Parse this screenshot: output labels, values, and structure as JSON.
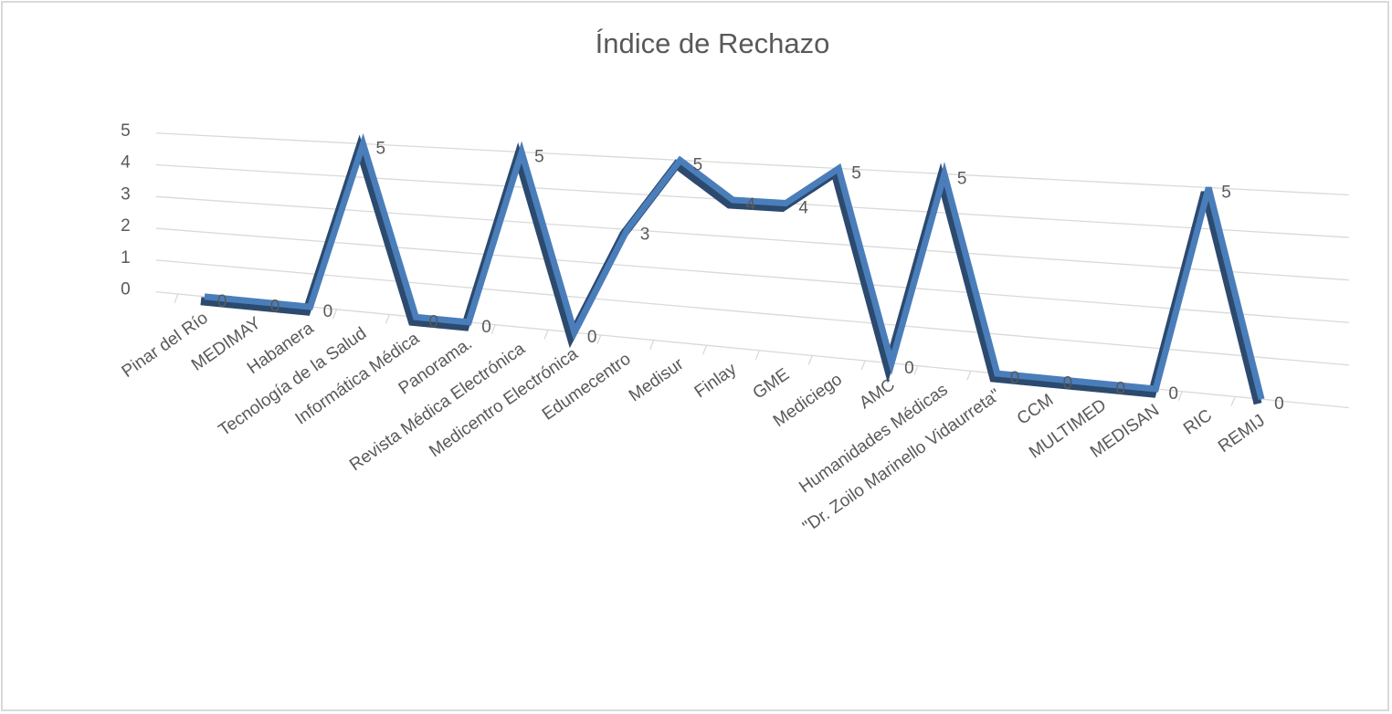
{
  "chart_data": {
    "type": "line",
    "title": "Índice de Rechazo",
    "categories": [
      "Pinar del Río",
      "MEDIMAY",
      "Habanera",
      "Tecnología de la Salud",
      "Informática Médica",
      "Panorama.",
      "Revista Médica Electrónica",
      "Medicentro Electrónica",
      "Edumecentro",
      "Medisur",
      "Finlay",
      "GME",
      "Mediciego",
      "AMC",
      "Humanidades Médicas",
      "\"Dr. Zoilo Marinello Vidaurreta\"",
      "CCM",
      "MULTIMED",
      "MEDISAN",
      "RIC",
      "REMIJ"
    ],
    "values": [
      0,
      0,
      0,
      5,
      0,
      0,
      5,
      0,
      3,
      5,
      4,
      4,
      5,
      0,
      5,
      0,
      0,
      0,
      0,
      5,
      0
    ],
    "color": "#4a7ebb",
    "ylim": [
      0,
      5
    ],
    "yticks": [
      0,
      1,
      2,
      3,
      4,
      5
    ],
    "grid": true
  }
}
